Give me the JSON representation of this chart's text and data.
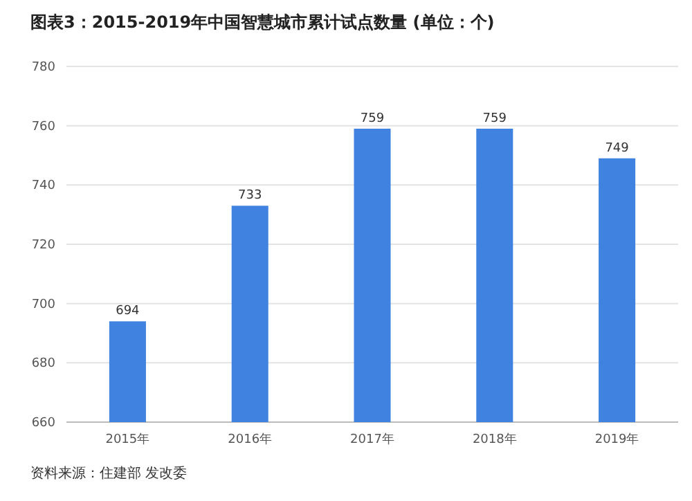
{
  "chart_data": {
    "type": "bar",
    "title": "图表3：2015-2019年中国智慧城市累计试点数量 (单位：个)",
    "categories": [
      "2015年",
      "2016年",
      "2017年",
      "2018年",
      "2019年"
    ],
    "values": [
      694,
      733,
      759,
      759,
      749
    ],
    "color": "#3f82e0",
    "ylim": [
      660,
      780
    ],
    "yticks": [
      660,
      680,
      700,
      720,
      740,
      760,
      780
    ],
    "grid": "y",
    "data_labels": true,
    "annotations": [
      "资料来源：住建部 发改委"
    ]
  }
}
